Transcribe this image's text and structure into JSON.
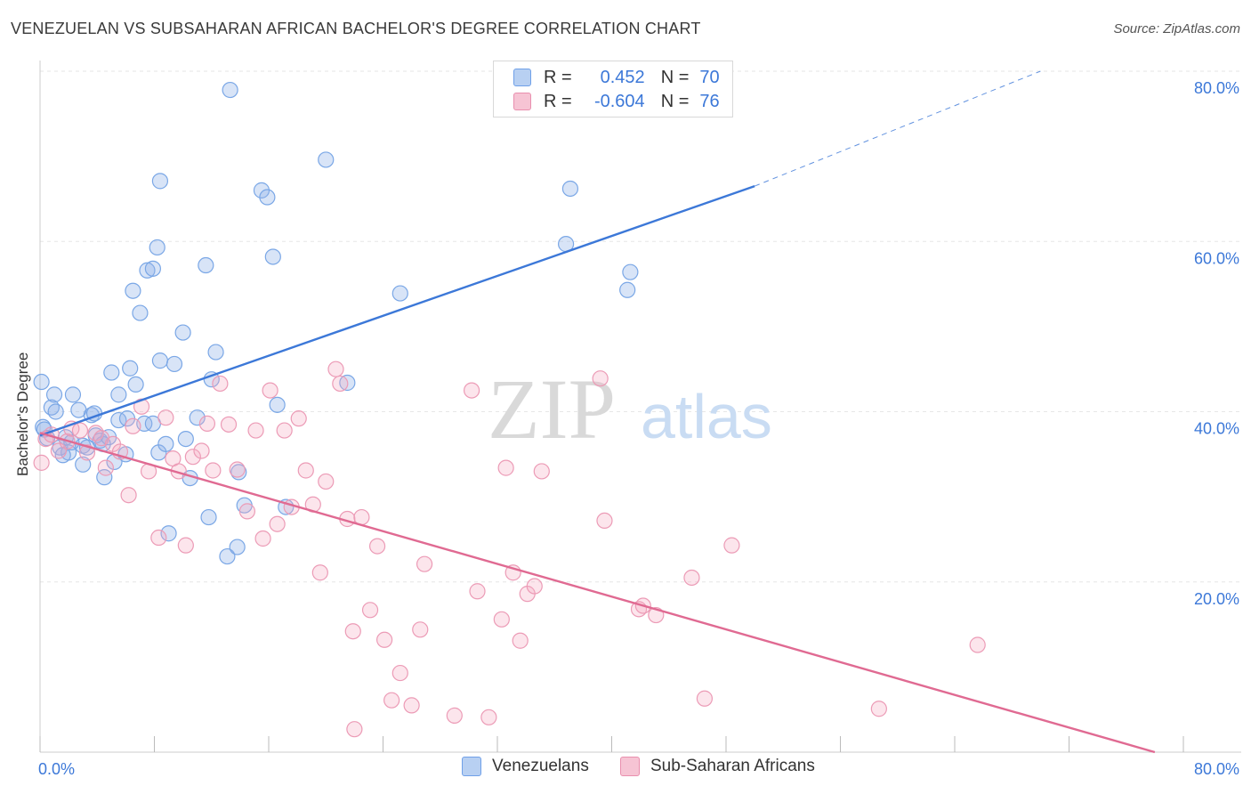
{
  "title": "VENEZUELAN VS SUBSAHARAN AFRICAN BACHELOR'S DEGREE CORRELATION CHART",
  "source": "Source: ZipAtlas.com",
  "watermark": {
    "zip": "ZIP",
    "atlas": "atlas"
  },
  "legend": {
    "rows": [
      {
        "r_label": "R =",
        "r_value": "0.452",
        "n_label": "N =",
        "n_value": "70",
        "color": "#6fa0e8",
        "fill": "#b8d0f2"
      },
      {
        "r_label": "R =",
        "r_value": "-0.604",
        "n_label": "N =",
        "n_value": "76",
        "color": "#e98fae",
        "fill": "#f6c4d4"
      }
    ]
  },
  "bottom_legend": [
    "Venezuelans",
    "Sub-Saharan Africans"
  ],
  "chart_data": {
    "type": "scatter",
    "title": "VENEZUELAN VS SUBSAHARAN AFRICAN BACHELOR'S DEGREE CORRELATION CHART",
    "xlabel": "",
    "ylabel": "Bachelor's Degree",
    "xlim": [
      0,
      80
    ],
    "ylim": [
      0,
      80
    ],
    "x_tick_labels": [
      "0.0%",
      "80.0%"
    ],
    "y_tick_labels": [
      "20.0%",
      "40.0%",
      "60.0%",
      "80.0%"
    ],
    "y_ticks": [
      20,
      40,
      60,
      80
    ],
    "grid": true,
    "legend_position": "top-center",
    "series": [
      {
        "name": "Venezuelans",
        "color": "#3c78d8",
        "fill": "rgba(142,178,232,0.35)",
        "stroke": "#7aa7e6",
        "trend": {
          "x": [
            0,
            50
          ],
          "y": [
            37.2,
            66.5
          ],
          "dash_to": [
            70,
            80
          ]
        },
        "points": [
          [
            0.1,
            43.5
          ],
          [
            0.2,
            38.2
          ],
          [
            0.8,
            40.5
          ],
          [
            1.0,
            42.0
          ],
          [
            1.1,
            40.0
          ],
          [
            1.4,
            35.8
          ],
          [
            1.8,
            37.0
          ],
          [
            2.0,
            35.2
          ],
          [
            2.2,
            36.4
          ],
          [
            2.3,
            42.0
          ],
          [
            2.7,
            40.2
          ],
          [
            3.0,
            36.0
          ],
          [
            3.0,
            33.8
          ],
          [
            3.3,
            35.8
          ],
          [
            3.6,
            39.6
          ],
          [
            3.8,
            39.8
          ],
          [
            3.9,
            37.2
          ],
          [
            4.2,
            36.6
          ],
          [
            4.4,
            36.2
          ],
          [
            4.5,
            32.3
          ],
          [
            5.0,
            44.6
          ],
          [
            5.2,
            34.1
          ],
          [
            5.5,
            39.0
          ],
          [
            5.5,
            42.0
          ],
          [
            6.0,
            35.0
          ],
          [
            6.1,
            39.2
          ],
          [
            6.3,
            45.1
          ],
          [
            6.5,
            54.2
          ],
          [
            6.7,
            43.2
          ],
          [
            7.0,
            51.6
          ],
          [
            7.3,
            38.6
          ],
          [
            7.5,
            56.6
          ],
          [
            7.9,
            56.8
          ],
          [
            8.2,
            59.3
          ],
          [
            8.3,
            35.2
          ],
          [
            8.4,
            67.1
          ],
          [
            8.4,
            46.0
          ],
          [
            8.8,
            36.2
          ],
          [
            9.0,
            25.7
          ],
          [
            9.4,
            45.6
          ],
          [
            10.0,
            49.3
          ],
          [
            10.2,
            36.8
          ],
          [
            10.5,
            32.2
          ],
          [
            11.0,
            39.3
          ],
          [
            11.6,
            57.2
          ],
          [
            11.8,
            27.6
          ],
          [
            12.0,
            43.8
          ],
          [
            12.3,
            47.0
          ],
          [
            13.3,
            77.8
          ],
          [
            13.1,
            23.0
          ],
          [
            13.8,
            24.1
          ],
          [
            13.9,
            32.9
          ],
          [
            14.3,
            29.0
          ],
          [
            15.5,
            66.0
          ],
          [
            15.9,
            65.2
          ],
          [
            16.3,
            58.2
          ],
          [
            16.6,
            40.8
          ],
          [
            17.2,
            28.8
          ],
          [
            20.0,
            69.6
          ],
          [
            21.5,
            43.4
          ],
          [
            25.2,
            53.9
          ],
          [
            36.8,
            59.7
          ],
          [
            37.1,
            66.2
          ],
          [
            41.1,
            54.3
          ],
          [
            41.3,
            56.4
          ],
          [
            0.3,
            37.9
          ],
          [
            0.5,
            36.9
          ],
          [
            1.6,
            34.9
          ],
          [
            7.9,
            38.6
          ],
          [
            4.8,
            37.0
          ]
        ]
      },
      {
        "name": "Sub-Saharan Africans",
        "color": "#e06a92",
        "fill": "rgba(244,168,192,0.30)",
        "stroke": "#ec9bb6",
        "trend": {
          "x": [
            0,
            78
          ],
          "y": [
            37.5,
            0
          ]
        },
        "points": [
          [
            0.1,
            34.0
          ],
          [
            0.4,
            36.8
          ],
          [
            0.8,
            37.3
          ],
          [
            1.3,
            35.4
          ],
          [
            1.9,
            36.5
          ],
          [
            2.2,
            38.0
          ],
          [
            2.8,
            37.8
          ],
          [
            3.3,
            35.2
          ],
          [
            3.9,
            37.5
          ],
          [
            4.3,
            36.9
          ],
          [
            4.6,
            33.4
          ],
          [
            5.1,
            36.2
          ],
          [
            5.6,
            35.3
          ],
          [
            6.2,
            30.2
          ],
          [
            6.5,
            38.3
          ],
          [
            7.1,
            40.6
          ],
          [
            7.6,
            33.0
          ],
          [
            8.3,
            25.2
          ],
          [
            8.8,
            39.3
          ],
          [
            9.3,
            34.5
          ],
          [
            9.7,
            33.0
          ],
          [
            10.2,
            24.3
          ],
          [
            10.7,
            34.7
          ],
          [
            11.3,
            35.4
          ],
          [
            11.7,
            38.6
          ],
          [
            12.1,
            33.1
          ],
          [
            12.6,
            43.3
          ],
          [
            13.2,
            38.5
          ],
          [
            13.8,
            33.2
          ],
          [
            14.5,
            28.3
          ],
          [
            15.1,
            37.8
          ],
          [
            15.6,
            25.1
          ],
          [
            16.1,
            42.5
          ],
          [
            16.6,
            26.8
          ],
          [
            17.1,
            37.8
          ],
          [
            17.6,
            28.8
          ],
          [
            18.1,
            39.2
          ],
          [
            18.6,
            33.1
          ],
          [
            19.1,
            29.1
          ],
          [
            19.6,
            21.1
          ],
          [
            20.0,
            31.8
          ],
          [
            20.7,
            45.0
          ],
          [
            21.0,
            43.3
          ],
          [
            21.5,
            27.4
          ],
          [
            21.9,
            14.2
          ],
          [
            22.5,
            27.6
          ],
          [
            23.1,
            16.7
          ],
          [
            23.6,
            24.2
          ],
          [
            24.1,
            13.2
          ],
          [
            24.6,
            6.1
          ],
          [
            25.2,
            9.3
          ],
          [
            26.0,
            5.5
          ],
          [
            26.6,
            14.4
          ],
          [
            26.9,
            22.1
          ],
          [
            29.0,
            4.3
          ],
          [
            30.2,
            42.5
          ],
          [
            30.6,
            18.9
          ],
          [
            31.4,
            4.1
          ],
          [
            32.3,
            15.6
          ],
          [
            32.6,
            33.4
          ],
          [
            33.1,
            21.1
          ],
          [
            33.6,
            13.1
          ],
          [
            34.1,
            18.6
          ],
          [
            34.6,
            19.5
          ],
          [
            35.1,
            33.0
          ],
          [
            39.2,
            43.9
          ],
          [
            39.5,
            27.2
          ],
          [
            41.9,
            16.8
          ],
          [
            42.2,
            17.2
          ],
          [
            43.1,
            16.1
          ],
          [
            45.6,
            20.5
          ],
          [
            46.5,
            6.3
          ],
          [
            48.4,
            24.3
          ],
          [
            58.7,
            5.1
          ],
          [
            65.6,
            12.6
          ],
          [
            22.0,
            2.7
          ]
        ]
      }
    ]
  }
}
